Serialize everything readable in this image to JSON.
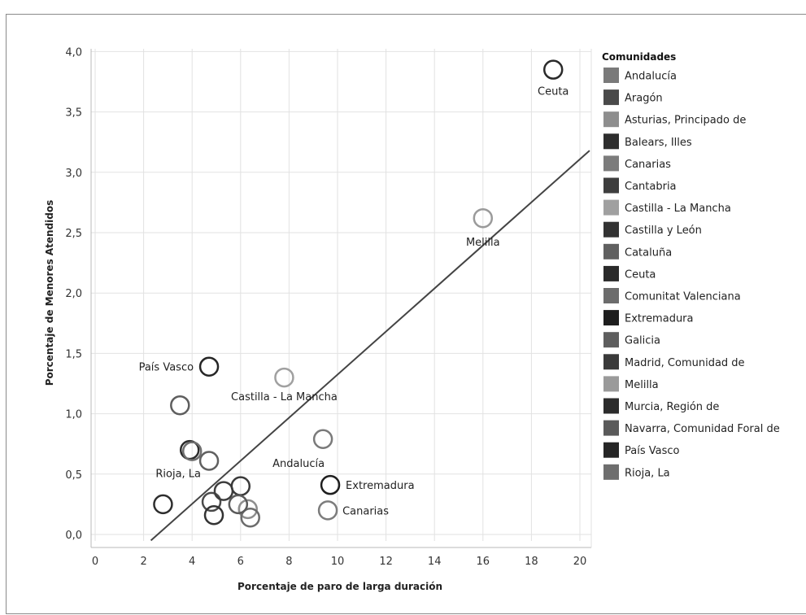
{
  "chart_data": {
    "type": "scatter",
    "title": "",
    "xlabel": "Porcentaje de paro de larga duración",
    "ylabel": "Porcentaje de Menores Atendidos",
    "xlim": [
      0,
      20.4
    ],
    "ylim": [
      0,
      4.2
    ],
    "x_ticks": [
      0,
      2,
      4,
      6,
      8,
      10,
      12,
      14,
      16,
      18,
      20
    ],
    "y_ticks": [
      "0,0",
      "0,5",
      "1,0",
      "1,5",
      "2,0",
      "2,5",
      "3,0",
      "3,5",
      "4,0"
    ],
    "y_tick_values": [
      0,
      0.5,
      1.0,
      1.5,
      2.0,
      2.5,
      3.0,
      3.5,
      4.0
    ],
    "grid": true,
    "legend_position": "right",
    "legend_title": "Comunidades",
    "series": [
      {
        "name": "Andalucía",
        "color": "#7a7a7a",
        "points": [
          {
            "x": 9.4,
            "y": 0.79,
            "label": "Andalucía"
          }
        ]
      },
      {
        "name": "Aragón",
        "color": "#4a4a4a",
        "points": [
          {
            "x": 4.8,
            "y": 0.27
          }
        ]
      },
      {
        "name": "Asturias, Principado de",
        "color": "#8e8e8e",
        "points": [
          {
            "x": 6.3,
            "y": 0.21
          }
        ]
      },
      {
        "name": "Balears, Illes",
        "color": "#2e2e2e",
        "points": [
          {
            "x": 2.8,
            "y": 0.25
          }
        ]
      },
      {
        "name": "Canarias",
        "color": "#7c7c7c",
        "points": [
          {
            "x": 9.6,
            "y": 0.2,
            "label": "Canarias"
          }
        ]
      },
      {
        "name": "Cantabria",
        "color": "#3e3e3e",
        "points": [
          {
            "x": 5.3,
            "y": 0.36
          }
        ]
      },
      {
        "name": "Castilla - La Mancha",
        "color": "#a0a0a0",
        "points": [
          {
            "x": 7.8,
            "y": 1.3,
            "label": "Castilla - La Mancha"
          }
        ]
      },
      {
        "name": "Castilla y León",
        "color": "#333333",
        "points": [
          {
            "x": 4.9,
            "y": 0.16
          }
        ]
      },
      {
        "name": "Cataluña",
        "color": "#606060",
        "points": [
          {
            "x": 4.7,
            "y": 0.61
          }
        ]
      },
      {
        "name": "Ceuta",
        "color": "#2a2a2a",
        "points": [
          {
            "x": 18.9,
            "y": 3.85,
            "label": "Ceuta"
          }
        ]
      },
      {
        "name": "Comunitat Valenciana",
        "color": "#6c6c6c",
        "points": [
          {
            "x": 6.4,
            "y": 0.14
          }
        ]
      },
      {
        "name": "Extremadura",
        "color": "#1e1e1e",
        "points": [
          {
            "x": 9.7,
            "y": 0.41,
            "label": "Extremadura"
          }
        ]
      },
      {
        "name": "Galicia",
        "color": "#5e5e5e",
        "points": [
          {
            "x": 3.5,
            "y": 1.07
          }
        ]
      },
      {
        "name": "Madrid, Comunidad de",
        "color": "#3a3a3a",
        "points": [
          {
            "x": 6.0,
            "y": 0.4
          }
        ]
      },
      {
        "name": "Melilla",
        "color": "#9a9a9a",
        "points": [
          {
            "x": 16.0,
            "y": 2.62,
            "label": "Melilla"
          }
        ]
      },
      {
        "name": "Murcia, Región de",
        "color": "#2c2c2c",
        "points": [
          {
            "x": 3.9,
            "y": 0.7
          }
        ]
      },
      {
        "name": "Navarra, Comunidad Foral de",
        "color": "#5a5a5a",
        "points": [
          {
            "x": 5.9,
            "y": 0.25
          }
        ]
      },
      {
        "name": "País Vasco",
        "color": "#262626",
        "points": [
          {
            "x": 4.7,
            "y": 1.39,
            "label": "País Vasco"
          }
        ]
      },
      {
        "name": "Rioja, La",
        "color": "#6e6e6e",
        "points": [
          {
            "x": 4.0,
            "y": 0.69,
            "label": "Rioja, La"
          }
        ]
      }
    ],
    "trendline": {
      "x": [
        2.3,
        20.4
      ],
      "y": [
        -0.05,
        3.18
      ],
      "color": "#444444"
    }
  }
}
